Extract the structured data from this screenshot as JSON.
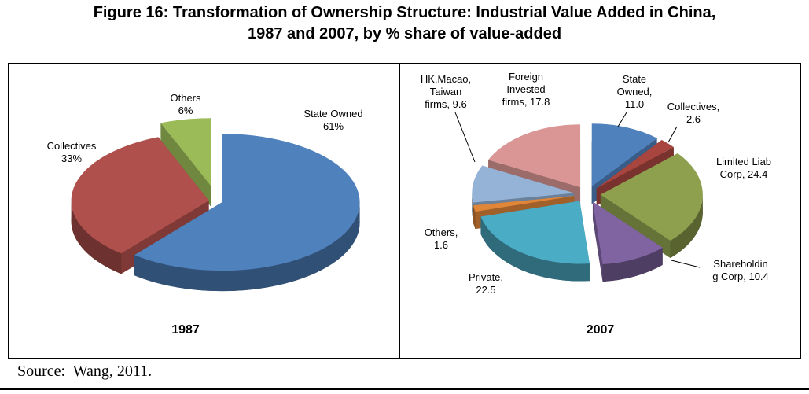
{
  "title": {
    "line1": "Figure 16: Transformation of Ownership Structure: Industrial Value Added in China,",
    "line2": "1987 and 2007, by % share of value-added"
  },
  "source_text": "Source:  Wang, 2011.",
  "chart_data": [
    {
      "type": "pie",
      "title": "1987",
      "subtitle": "% share of industrial value added, 1987",
      "labels": [
        "State Owned",
        "Collectives",
        "Others"
      ],
      "values": [
        61,
        33,
        6
      ],
      "display_labels": [
        [
          "State Owned",
          "61%"
        ],
        [
          "Collectives",
          "33%"
        ],
        [
          "Others",
          "6%"
        ]
      ],
      "colors": [
        "#4f81bd",
        "#b0504d",
        "#9bbb59"
      ],
      "start_angle": 0,
      "clockwise": true,
      "explode": [
        0.04,
        0.06,
        0.22
      ],
      "effect": "3d-exploded",
      "legend": "none"
    },
    {
      "type": "pie",
      "title": "2007",
      "subtitle": "% share of industrial value added, 2007",
      "labels": [
        "State Owned",
        "Collectives",
        "Limited Liab Corp",
        "Shareholding Corp",
        "Private",
        "Others",
        "HK, Macao, Taiwan firms",
        "Foreign Invested firms"
      ],
      "values": [
        11.0,
        2.6,
        24.4,
        10.4,
        22.5,
        1.6,
        9.6,
        17.8
      ],
      "display_labels": [
        [
          "State",
          "Owned,",
          "11.0"
        ],
        [
          "Collectives,",
          "2.6"
        ],
        [
          "Limited Liab",
          "Corp, 24.4"
        ],
        [
          "Shareholdin",
          "g Corp, 10.4"
        ],
        [
          "Private,",
          "22.5"
        ],
        [
          "Others,",
          "1.6"
        ],
        [
          "HK,Macao,",
          "Taiwan",
          "firms, 9.6"
        ],
        [
          "Foreign",
          "Invested",
          "firms, 17.8"
        ]
      ],
      "colors": [
        "#4f81bd",
        "#a8453f",
        "#8ea04e",
        "#8064a2",
        "#4bacc6",
        "#e08639",
        "#95b3d7",
        "#d99694"
      ],
      "start_angle": 0,
      "clockwise": true,
      "explode": 0.13,
      "effect": "3d-exploded",
      "legend": "none"
    }
  ]
}
